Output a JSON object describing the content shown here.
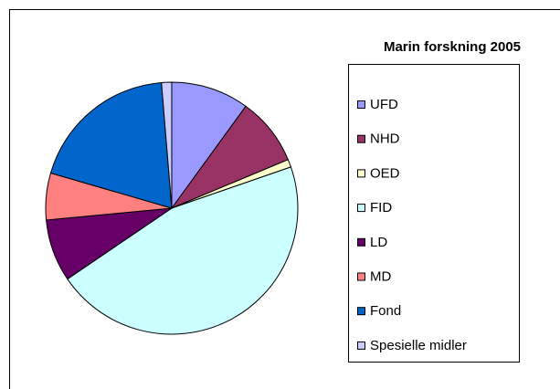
{
  "chart_data": {
    "type": "pie",
    "title": "Marin forskning 2005",
    "categories": [
      "UFD",
      "NHD",
      "OED",
      "FID",
      "LD",
      "MD",
      "Fond",
      "Spesielle midler"
    ],
    "values": [
      10,
      8.7,
      1,
      45.8,
      8,
      6,
      19.2,
      1.3
    ],
    "colors": [
      "#9999ff",
      "#993366",
      "#ffffcc",
      "#ccffff",
      "#660066",
      "#ff8080",
      "#0066cc",
      "#ccccff"
    ],
    "legend": "right"
  }
}
